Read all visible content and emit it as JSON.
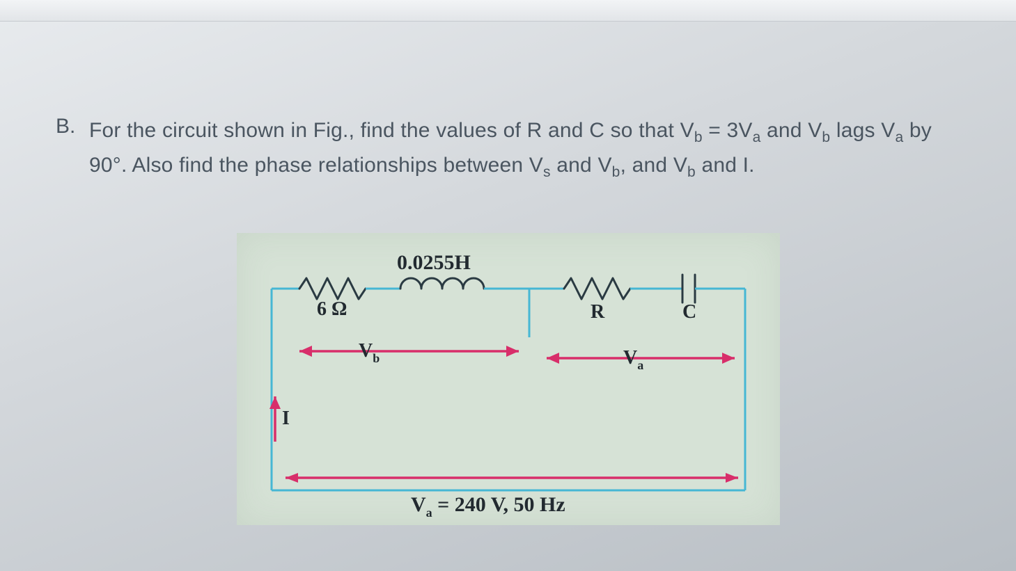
{
  "question": {
    "marker": "B.",
    "text_html": "For the circuit shown in Fig., find the values of R and C so that V<sub>b</sub> = 3V<sub>a</sub> and V<sub>b</sub> lags V<sub>a</sub> by 90°. Also find the phase relationships between V<sub>s</sub> and V<sub>b</sub>, and V<sub>b</sub> and I."
  },
  "circuit": {
    "inductor_label": "0.0255H",
    "resistor1_label": "6 Ω",
    "resistor2_label": "R",
    "capacitor_label": "C",
    "vb_label": "V",
    "vb_sub": "b",
    "va_label": "V",
    "va_sub": "a",
    "current_label": "I",
    "source_label": "V",
    "source_sub": "a",
    "source_value": " = 240  V, 50 Hz",
    "colors": {
      "wire": "#46b7d4",
      "component": "#2a3a42",
      "arrow": "#d82e6a",
      "figure_bg": "#d6e2d6",
      "page_bg_light": "#e8ebee",
      "page_bg_dark": "#b8bec4",
      "text": "#4a5560"
    }
  }
}
